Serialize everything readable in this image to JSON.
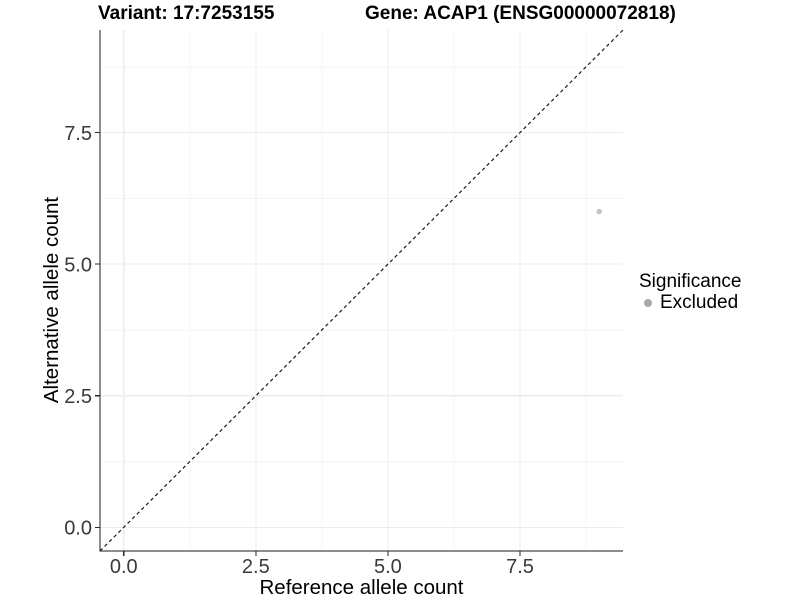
{
  "chart_data": {
    "type": "scatter",
    "titles": {
      "left": "Variant: 17:7253155",
      "right": "Gene: ACAP1 (ENSG00000072818)"
    },
    "xlabel": "Reference allele count",
    "ylabel": "Alternative allele count",
    "xlim": [
      -0.45,
      9.45
    ],
    "ylim": [
      -0.45,
      9.45
    ],
    "x_ticks": {
      "values": [
        0,
        2.5,
        5,
        7.5
      ],
      "labels": [
        "0.0",
        "2.5",
        "5.0",
        "7.5"
      ]
    },
    "y_ticks": {
      "values": [
        0,
        2.5,
        5,
        7.5
      ],
      "labels": [
        "0.0",
        "2.5",
        "5.0",
        "7.5"
      ]
    },
    "x_minor": [
      1.25,
      3.75,
      6.25,
      8.75
    ],
    "y_minor": [
      1.25,
      3.75,
      6.25,
      8.75
    ],
    "grid": {
      "major": true,
      "minor": true
    },
    "identity_line": {
      "slope": 1,
      "intercept": 0,
      "style": "dashed"
    },
    "series": [
      {
        "name": "Excluded",
        "color": "#c5c5c5",
        "points": [
          {
            "x": 9,
            "y": 6
          }
        ]
      }
    ],
    "legend": {
      "title": "Significance",
      "position": "right",
      "items": [
        {
          "label": "Excluded",
          "color": "#a9a9a9"
        }
      ]
    }
  },
  "colors": {
    "background": "#ffffff",
    "axis_line": "#1a1a1a",
    "tick_mark": "#262626",
    "tick_label": "#3a3a3a",
    "grid_major": "#ececec",
    "grid_minor": "#f5f5f5",
    "identity_line": "#1a1a1a"
  }
}
